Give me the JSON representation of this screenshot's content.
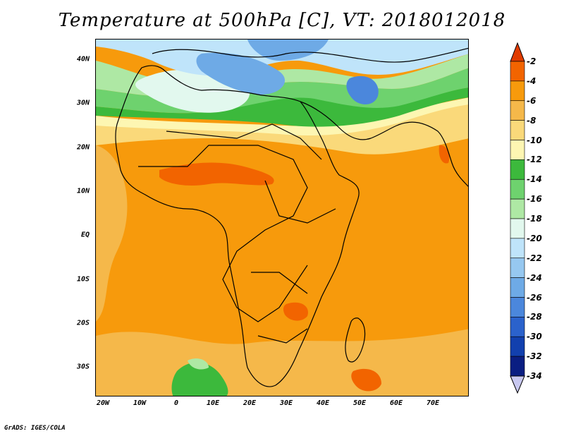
{
  "title": "Temperature at 500hPa [C], VT: 2018012018",
  "credit": "GrADS: IGES/COLA",
  "lat_labels": [
    "40N",
    "30N",
    "20N",
    "10N",
    "EQ",
    "10S",
    "20S",
    "30S"
  ],
  "lon_labels": [
    "20W",
    "10W",
    "0",
    "10E",
    "20E",
    "30E",
    "40E",
    "50E",
    "60E",
    "70E"
  ],
  "legend": {
    "labels": [
      "-2",
      "-4",
      "-6",
      "-8",
      "-10",
      "-12",
      "-14",
      "-16",
      "-18",
      "-20",
      "-22",
      "-24",
      "-26",
      "-28",
      "-30",
      "-32",
      "-34"
    ],
    "colors": [
      "#e13c00",
      "#f26400",
      "#f79a0c",
      "#f5b84a",
      "#fad97a",
      "#fdf6b2",
      "#3cb93c",
      "#6ed26e",
      "#aee8a4",
      "#e2f8ee",
      "#bfe4fa",
      "#96c8f0",
      "#6eaae6",
      "#4b87dc",
      "#2b62cc",
      "#1240ae",
      "#0a1e82",
      "#c8c8f0"
    ],
    "top_arrow_color": "#e13c00",
    "bottom_arrow_color": "#c8c8f0"
  },
  "map_colors": {
    "warm": "#f79a0c",
    "warm_light": "#f5b84a",
    "hot": "#f26400",
    "pale": "#fad97a",
    "cream": "#fdf6b2",
    "green": "#3cb93c",
    "green_light": "#6ed26e",
    "mint": "#aee8a4",
    "ice": "#e2f8ee",
    "sky": "#bfe4fa",
    "blue": "#6eaae6",
    "blue_dark": "#4b87dc",
    "coast": "#000000"
  }
}
